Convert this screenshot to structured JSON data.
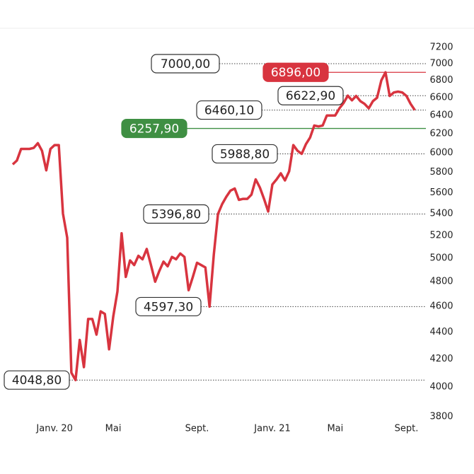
{
  "chart_data": {
    "type": "line",
    "log_scale": true,
    "categories": [
      null,
      null,
      null,
      null,
      null,
      null,
      null,
      null,
      null,
      null,
      "Janv. 20",
      null,
      null,
      null,
      null,
      null,
      null,
      null,
      null,
      null,
      null,
      null,
      null,
      null,
      "Mai",
      null,
      null,
      null,
      null,
      null,
      null,
      null,
      null,
      null,
      null,
      null,
      null,
      null,
      null,
      null,
      null,
      null,
      null,
      null,
      "Sept.",
      null,
      null,
      null,
      null,
      null,
      null,
      null,
      null,
      null,
      null,
      null,
      null,
      null,
      null,
      null,
      null,
      null,
      "Janv. 21",
      null,
      null,
      null,
      null,
      null,
      null,
      null,
      null,
      null,
      null,
      null,
      null,
      null,
      null,
      "Mai",
      null,
      null,
      null,
      null,
      null,
      null,
      null,
      null,
      null,
      null,
      null,
      null,
      null,
      null,
      null,
      null,
      "Sept.",
      null,
      null
    ],
    "series": [
      {
        "color": "#d8343f",
        "values": [
          5880,
          5920,
          6040,
          6040,
          6040,
          6050,
          6100,
          6020,
          5820,
          6040,
          6080,
          6080,
          5400,
          5180,
          4100,
          4048.8,
          4340,
          4140,
          4500,
          4500,
          4380,
          4560,
          4540,
          4270,
          4520,
          4720,
          5220,
          4840,
          4980,
          4940,
          5020,
          4990,
          5080,
          4940,
          4800,
          4890,
          4970,
          4930,
          5010,
          4990,
          5040,
          5010,
          4730,
          4840,
          4960,
          4940,
          4920,
          4597.3,
          5030,
          5396.8,
          5490,
          5560,
          5620,
          5640,
          5530,
          5540,
          5540,
          5580,
          5730,
          5650,
          5540,
          5420,
          5680,
          5730,
          5790,
          5720,
          5810,
          6080,
          6020,
          5988.8,
          6090,
          6160,
          6290,
          6280,
          6290,
          6400,
          6400,
          6400,
          6480,
          6540,
          6622.9,
          6570,
          6620,
          6560,
          6530,
          6480,
          6560,
          6600,
          6800,
          6896,
          6620,
          6660,
          6670,
          6660,
          6620,
          6530,
          6460.1
        ]
      }
    ],
    "ylim": [
      3800,
      7200
    ],
    "yticks": [
      3800,
      4000,
      4200,
      4400,
      4600,
      4800,
      5000,
      5200,
      5400,
      5600,
      5800,
      6000,
      6200,
      6400,
      6600,
      6800,
      7000,
      7200
    ],
    "annotations": [
      {
        "value": 7000,
        "label": "7000,00",
        "style": "dotted"
      },
      {
        "value": 6896,
        "label": "6896,00",
        "style": "solid",
        "color": "#d8343f"
      },
      {
        "value": 6622.9,
        "label": "6622,90",
        "style": "dotted"
      },
      {
        "value": 6460.1,
        "label": "6460,10",
        "style": "dotted"
      },
      {
        "value": 6257.9,
        "label": "6257,90",
        "style": "solid",
        "color": "#3f8f43"
      },
      {
        "value": 5988.8,
        "label": "5988,80",
        "style": "dotted"
      },
      {
        "value": 5396.8,
        "label": "5396,80",
        "style": "dotted"
      },
      {
        "value": 4597.3,
        "label": "4597,30",
        "style": "dotted"
      },
      {
        "value": 4048.8,
        "label": "4048,80",
        "style": "dotted"
      }
    ]
  }
}
